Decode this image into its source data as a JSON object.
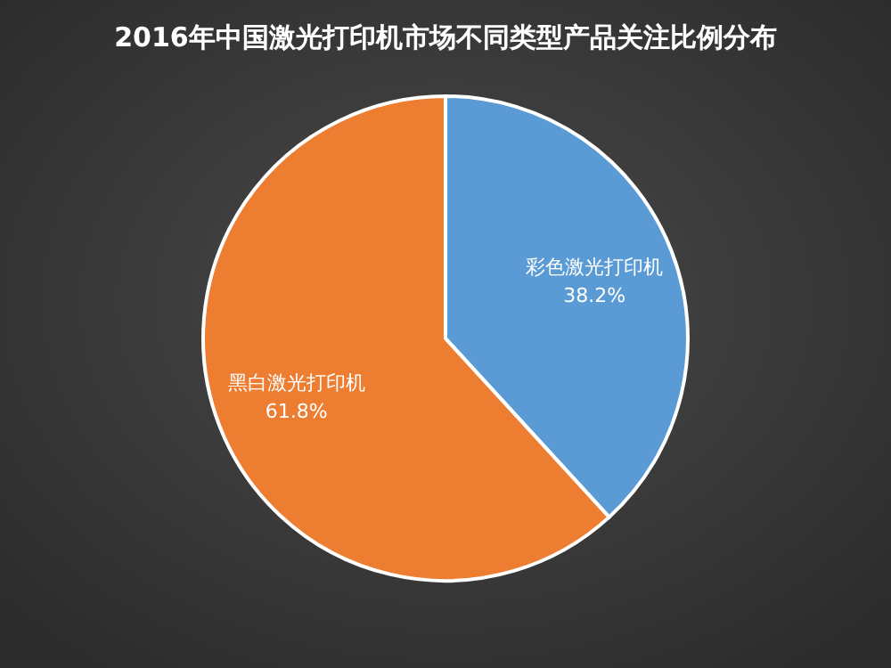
{
  "chart_data": {
    "type": "pie",
    "title": "2016年中国激光打印机市场不同类型产品关注比例分布",
    "categories": [
      "彩色激光打印机",
      "黑白激光打印机"
    ],
    "values": [
      38.2,
      61.8
    ],
    "colors": [
      "#5b9bd5",
      "#ed7d31"
    ],
    "value_labels": [
      "38.2%",
      "61.8%"
    ],
    "legend": false
  }
}
